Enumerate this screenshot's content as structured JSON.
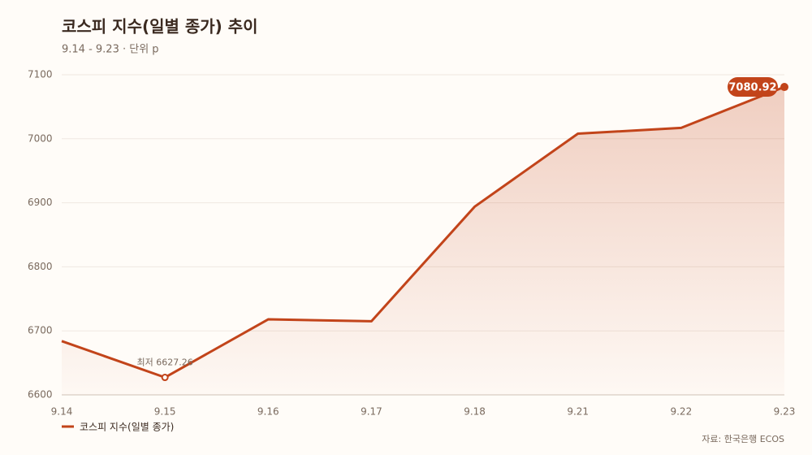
{
  "chart_data": {
    "type": "line",
    "title": "코스피 지수(일별 종가) 추이",
    "subtitle": "9.14 - 9.23 · 단위 p",
    "source": "자료: 한국은행 ECOS",
    "categories": [
      "9.14",
      "9.15",
      "9.16",
      "9.17",
      "9.18",
      "9.21",
      "9.22",
      "9.23"
    ],
    "series": [
      {
        "name": "코스피 지수(일별 종가)",
        "color": "#c2441a",
        "values": [
          6684,
          6627.26,
          6718,
          6715,
          6894,
          7008,
          7017,
          7080.92
        ],
        "value_labels": [
          null,
          "최저 6627.26",
          null,
          null,
          null,
          null,
          null,
          "7080.92"
        ]
      }
    ],
    "ylim": [
      6600,
      7100
    ],
    "yticks": [
      6600,
      6700,
      6800,
      6900,
      7000,
      7100
    ],
    "grid": true,
    "legend": "bottom-left"
  }
}
